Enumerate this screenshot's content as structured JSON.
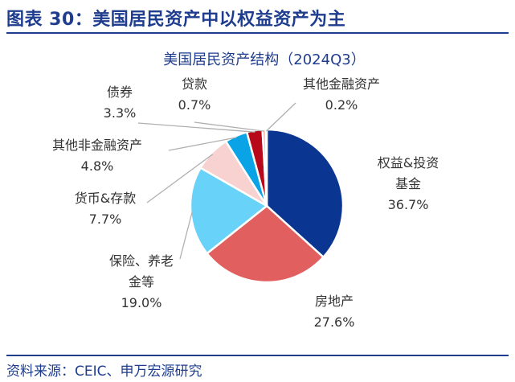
{
  "figure_title": "图表 30：美国居民资产中以权益资产为主",
  "source": "资料来源：CEIC、申万宏源研究",
  "chart_data": {
    "type": "pie",
    "title": "美国居民资产结构（2024Q3）",
    "unit": "%",
    "slices": [
      {
        "name": "权益&投资基金",
        "name_lines": [
          "权益&投资",
          "基金"
        ],
        "value": 36.7,
        "value_label": "36.7%",
        "color": "#0a3590"
      },
      {
        "name": "房地产",
        "name_lines": [
          "房地产"
        ],
        "value": 27.6,
        "value_label": "27.6%",
        "color": "#e15f5f"
      },
      {
        "name": "保险、养老金等",
        "name_lines": [
          "保险、养老",
          "金等"
        ],
        "value": 19.0,
        "value_label": "19.0%",
        "color": "#68d2f8"
      },
      {
        "name": "货币&存款",
        "name_lines": [
          "货币&存款"
        ],
        "value": 7.7,
        "value_label": "7.7%",
        "color": "#f7d2d0"
      },
      {
        "name": "其他非金融资产",
        "name_lines": [
          "其他非金融资产"
        ],
        "value": 4.8,
        "value_label": "4.8%",
        "color": "#0aa3e6"
      },
      {
        "name": "债券",
        "name_lines": [
          "债券"
        ],
        "value": 3.3,
        "value_label": "3.3%",
        "color": "#b8091a"
      },
      {
        "name": "贷款",
        "name_lines": [
          "贷款"
        ],
        "value": 0.7,
        "value_label": "0.7%",
        "color": "#f2a79e"
      },
      {
        "name": "其他金融资产",
        "name_lines": [
          "其他金融资产"
        ],
        "value": 0.2,
        "value_label": "0.2%",
        "color": "#6a8fd6"
      }
    ]
  }
}
